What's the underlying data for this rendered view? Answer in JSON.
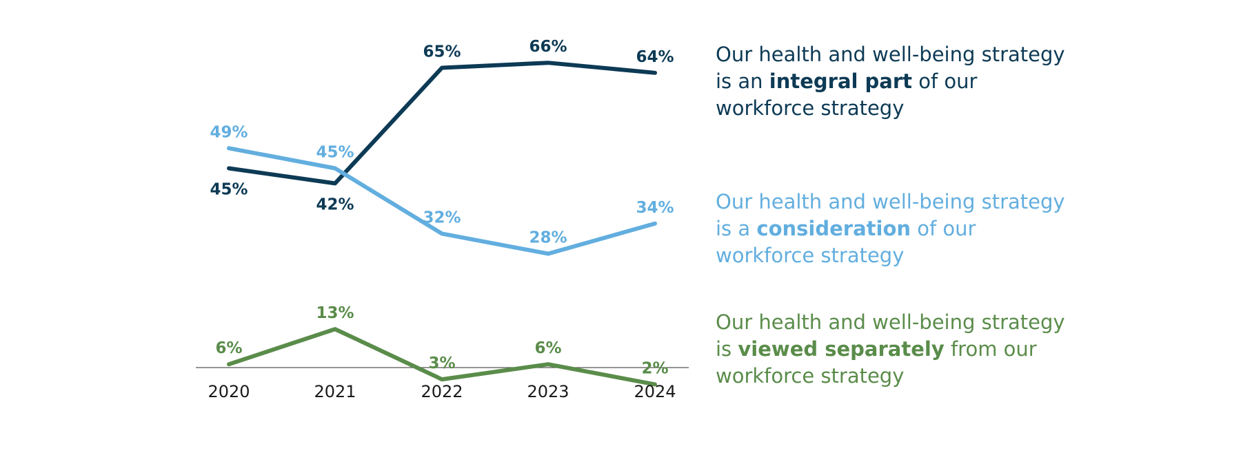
{
  "chart_data": {
    "type": "line",
    "x": [
      "2020",
      "2021",
      "2022",
      "2023",
      "2024"
    ],
    "ylim": [
      0,
      70
    ],
    "grid": false,
    "series": [
      {
        "key": "integral",
        "color": "#0d3a55",
        "values": [
          45,
          42,
          65,
          66,
          64
        ],
        "labels": [
          "45%",
          "42%",
          "65%",
          "66%",
          "64%"
        ]
      },
      {
        "key": "consideration",
        "color": "#62aedf",
        "values": [
          49,
          45,
          32,
          28,
          34
        ],
        "labels": [
          "49%",
          "45%",
          "32%",
          "28%",
          "34%"
        ]
      },
      {
        "key": "separate",
        "color": "#5a8c4a",
        "values": [
          6,
          13,
          3,
          6,
          2
        ],
        "labels": [
          "6%",
          "13%",
          "3%",
          "6%",
          "2%"
        ]
      }
    ]
  },
  "legend": {
    "integral": {
      "pre": "Our health and well-being strategy is an ",
      "bold": "integral part",
      "post": " of our workforce strategy"
    },
    "consideration": {
      "pre": "Our health and well-being strategy is a ",
      "bold": "consideration",
      "post": " of our workforce strategy"
    },
    "separate": {
      "pre": "Our health and well-being strategy is ",
      "bold": "viewed separately",
      "post": " from our workforce strategy"
    }
  }
}
